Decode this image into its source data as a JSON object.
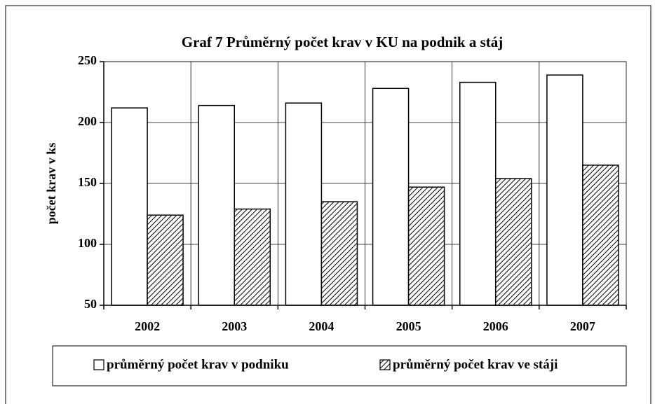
{
  "chart_data": {
    "type": "bar",
    "title": "Graf 7 Průměrný počet krav v KU na podnik a stáj",
    "y_label": "počet krav v ks",
    "categories": [
      "2002",
      "2003",
      "2004",
      "2005",
      "2006",
      "2007"
    ],
    "series": [
      {
        "name": "průměrný počet krav v podniku",
        "color": "#ffffff",
        "pattern": "none",
        "values": [
          212,
          214,
          216,
          228,
          233,
          239
        ]
      },
      {
        "name": "průměrný počet krav ve stáji",
        "color": "#ffffff",
        "pattern": "hatch",
        "values": [
          124,
          129,
          135,
          147,
          154,
          165
        ]
      }
    ],
    "ylim": [
      50,
      250
    ],
    "yticks": [
      50,
      100,
      150,
      200,
      250
    ],
    "grid": true,
    "legend": "bottom"
  }
}
